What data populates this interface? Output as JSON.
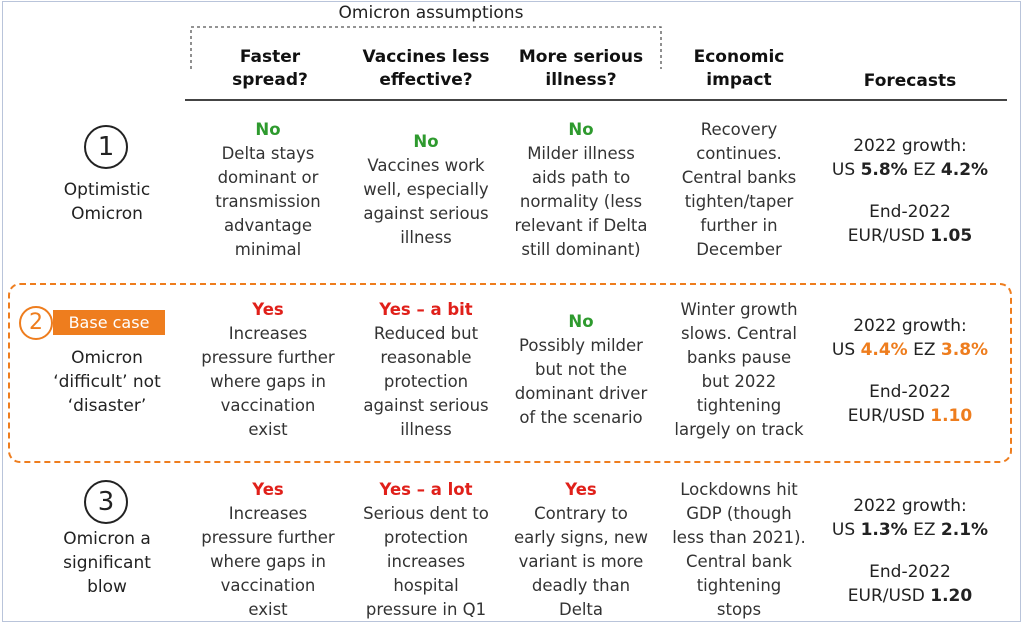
{
  "header": {
    "assumptions_title": "Omicron assumptions",
    "col_faster": [
      "Faster",
      "spread?"
    ],
    "col_vaccines": [
      "Vaccines less",
      "effective?"
    ],
    "col_serious": [
      "More serious",
      "illness?"
    ],
    "col_economic": [
      "Economic",
      "impact"
    ],
    "col_forecasts": "Forecasts"
  },
  "colors": {
    "green": "#2e9a2e",
    "red": "#e0201a",
    "orange": "#ee7d1e",
    "frame": "#b9c4da"
  },
  "scenarios": [
    {
      "number": "1",
      "label": [
        "Optimistic",
        "Omicron"
      ],
      "faster": {
        "verdict": "No",
        "color": "green",
        "text": [
          "Delta stays",
          "dominant or",
          "transmission",
          "advantage",
          "minimal"
        ]
      },
      "vaccines": {
        "verdict": "No",
        "color": "green",
        "text": [
          "Vaccines work",
          "well, especially",
          "against serious",
          "illness"
        ]
      },
      "serious": {
        "verdict": "No",
        "color": "green",
        "text": [
          "Milder illness",
          "aids path to",
          "normality (less",
          "relevant if Delta",
          "still dominant)"
        ]
      },
      "economic": [
        "Recovery",
        "continues.",
        "Central banks",
        "tighten/taper",
        "further in",
        "December"
      ],
      "growth_label": "2022 growth:",
      "us_label": "US",
      "us_value": "5.8%",
      "ez_label": "EZ",
      "ez_value": "4.2%",
      "end_label": "End-2022",
      "fx_label": "EUR/USD",
      "fx_value": "1.05"
    },
    {
      "number": "2",
      "badge": "Base case",
      "label": [
        "Omicron",
        "‘difficult’ not",
        "‘disaster’"
      ],
      "faster": {
        "verdict": "Yes",
        "color": "red",
        "text": [
          "Increases",
          "pressure further",
          "where gaps in",
          "vaccination",
          "exist"
        ]
      },
      "vaccines": {
        "verdict": "Yes – a bit",
        "color": "red",
        "text": [
          "Reduced but",
          "reasonable",
          "protection",
          "against serious",
          "illness"
        ]
      },
      "serious": {
        "verdict": "No",
        "color": "green",
        "text": [
          "Possibly milder",
          "but not the",
          "dominant driver",
          "of the scenario"
        ]
      },
      "economic": [
        "Winter growth",
        "slows. Central",
        "banks pause",
        "but 2022",
        "tightening",
        "largely on track"
      ],
      "growth_label": "2022 growth:",
      "us_label": "US",
      "us_value": "4.4%",
      "ez_label": "EZ",
      "ez_value": "3.8%",
      "end_label": "End-2022",
      "fx_label": "EUR/USD",
      "fx_value": "1.10"
    },
    {
      "number": "3",
      "label": [
        "Omicron a",
        "significant",
        "blow"
      ],
      "faster": {
        "verdict": "Yes",
        "color": "red",
        "text": [
          "Increases",
          "pressure further",
          "where gaps in",
          "vaccination",
          "exist"
        ]
      },
      "vaccines": {
        "verdict": "Yes – a lot",
        "color": "red",
        "text": [
          "Serious dent to",
          "protection",
          "increases",
          "hospital",
          "pressure in Q1"
        ]
      },
      "serious": {
        "verdict": "Yes",
        "color": "red",
        "text": [
          "Contrary to",
          "early signs, new",
          "variant is more",
          "deadly than",
          "Delta"
        ]
      },
      "economic": [
        "Lockdowns hit",
        "GDP (though",
        "less than 2021).",
        "Central bank",
        "tightening",
        "stops"
      ],
      "growth_label": "2022 growth:",
      "us_label": "US",
      "us_value": "1.3%",
      "ez_label": "EZ",
      "ez_value": "2.1%",
      "end_label": "End-2022",
      "fx_label": "EUR/USD",
      "fx_value": "1.20"
    }
  ]
}
